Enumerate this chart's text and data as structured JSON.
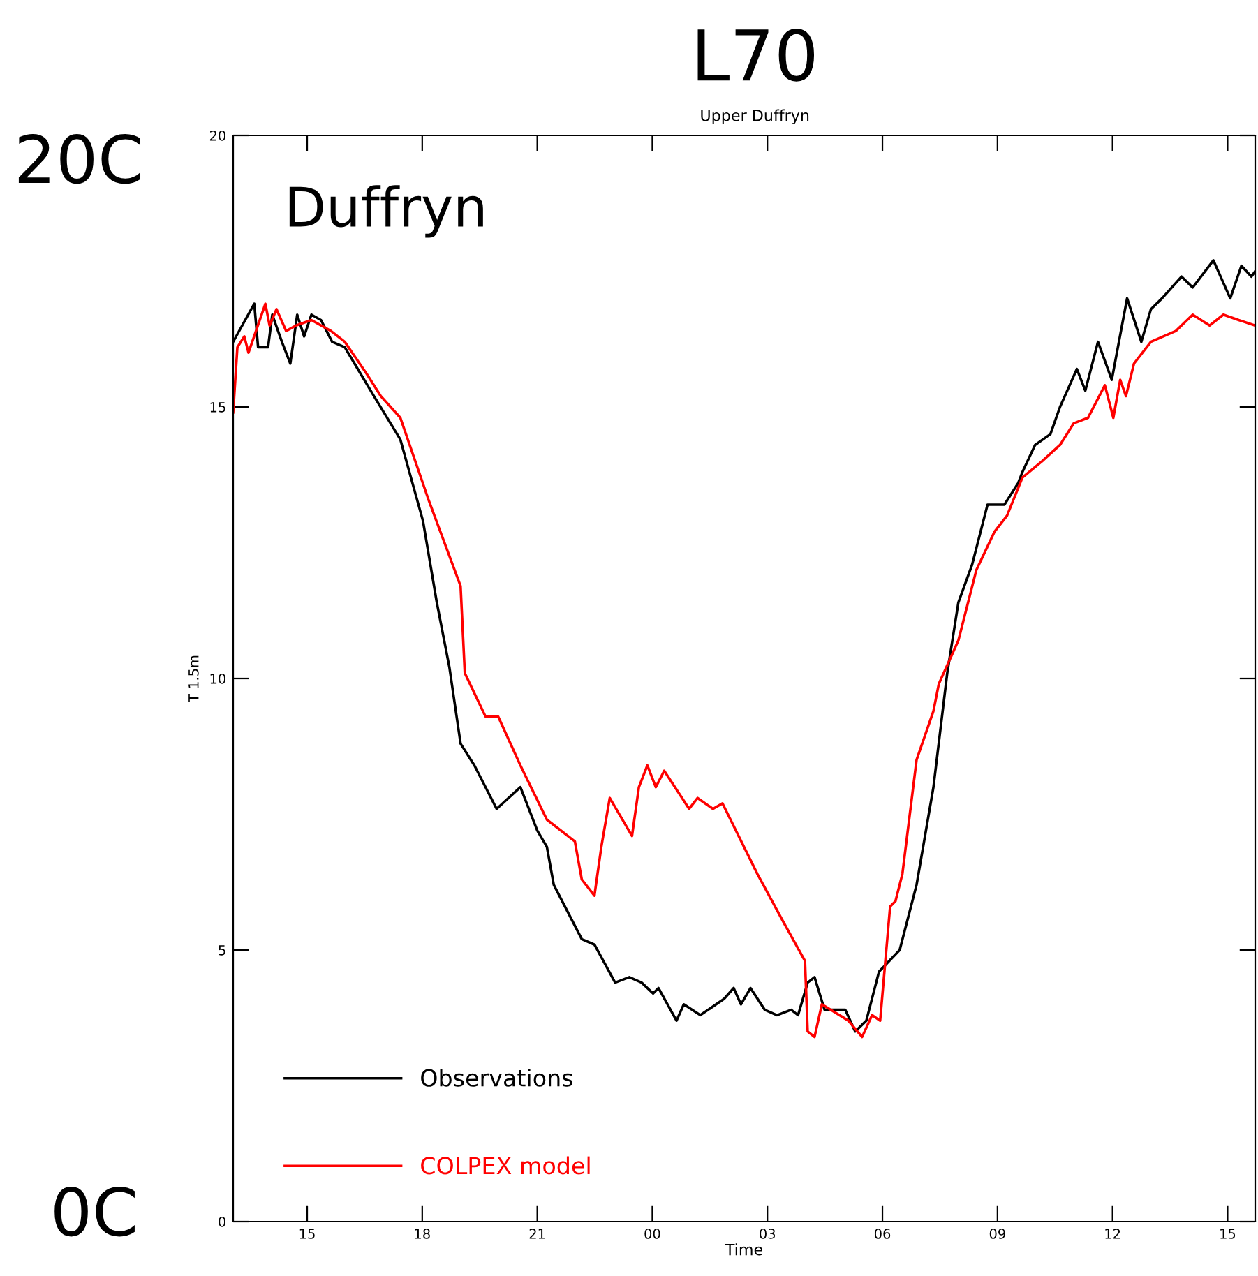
{
  "chart_data": {
    "type": "line",
    "title": "L70",
    "subtitle": "Upper Duffryn",
    "xlabel": "Time",
    "ylabel": "T 1.5m",
    "annotations": [
      "20C",
      "0C",
      "Duffryn"
    ],
    "xlim": [
      13.07,
      39.72
    ],
    "ylim": [
      0,
      20
    ],
    "xticks": [
      {
        "value": 15,
        "label": "15"
      },
      {
        "value": 18,
        "label": "18"
      },
      {
        "value": 21,
        "label": "21"
      },
      {
        "value": 24,
        "label": "00"
      },
      {
        "value": 27,
        "label": "03"
      },
      {
        "value": 30,
        "label": "06"
      },
      {
        "value": 33,
        "label": "09"
      },
      {
        "value": 36,
        "label": "12"
      },
      {
        "value": 39,
        "label": "15"
      }
    ],
    "yticks": [
      0,
      5,
      10,
      15,
      20
    ],
    "grid": false,
    "legend": "bottom left",
    "marker": "none",
    "line_style": "solid",
    "series": [
      {
        "name": "Observations",
        "color": "#000000",
        "x": [
          13.07,
          13.62,
          13.72,
          13.98,
          14.09,
          14.34,
          14.56,
          14.74,
          14.92,
          15.11,
          15.36,
          15.65,
          15.98,
          16.74,
          17.43,
          18.02,
          18.38,
          18.71,
          19.0,
          19.36,
          19.94,
          20.56,
          21.0,
          21.25,
          21.43,
          22.16,
          22.49,
          23.03,
          23.4,
          23.72,
          24.02,
          24.16,
          24.63,
          24.82,
          25.25,
          25.87,
          26.12,
          26.31,
          26.56,
          26.93,
          27.25,
          27.62,
          27.8,
          28.05,
          28.23,
          28.49,
          29.03,
          29.29,
          29.58,
          29.91,
          30.45,
          30.89,
          31.33,
          31.69,
          31.98,
          32.34,
          32.74,
          33.18,
          33.54,
          33.65,
          33.98,
          34.38,
          34.63,
          35.07,
          35.29,
          35.62,
          35.98,
          36.38,
          36.75,
          37.0,
          37.29,
          37.8,
          38.09,
          38.63,
          39.07,
          39.36,
          39.62,
          39.72
        ],
        "values": [
          16.2,
          16.9,
          16.1,
          16.1,
          16.7,
          16.2,
          15.8,
          16.7,
          16.3,
          16.7,
          16.6,
          16.2,
          16.1,
          15.2,
          14.4,
          12.9,
          11.4,
          10.2,
          8.8,
          8.4,
          7.6,
          8.0,
          7.2,
          6.9,
          6.2,
          5.2,
          5.1,
          4.4,
          4.5,
          4.4,
          4.2,
          4.3,
          3.7,
          4.0,
          3.8,
          4.1,
          4.3,
          4.0,
          4.3,
          3.9,
          3.8,
          3.9,
          3.8,
          4.4,
          4.5,
          3.9,
          3.9,
          3.5,
          3.7,
          4.6,
          5.0,
          6.2,
          8.0,
          10.1,
          11.4,
          12.1,
          13.2,
          13.2,
          13.6,
          13.8,
          14.3,
          14.5,
          15.0,
          15.7,
          15.3,
          16.2,
          15.5,
          17.0,
          16.2,
          16.8,
          17.0,
          17.4,
          17.2,
          17.7,
          17.0,
          17.6,
          17.4,
          17.5
        ]
      },
      {
        "name": "COLPEX model",
        "color": "#ff0000",
        "x": [
          13.07,
          13.18,
          13.36,
          13.47,
          13.91,
          14.02,
          14.2,
          14.45,
          14.71,
          15.11,
          15.62,
          15.98,
          16.56,
          16.92,
          17.43,
          18.16,
          19.0,
          19.11,
          19.65,
          19.98,
          20.56,
          21.25,
          21.98,
          22.16,
          22.49,
          22.67,
          22.89,
          23.47,
          23.65,
          23.87,
          24.09,
          24.31,
          24.96,
          25.18,
          25.58,
          25.83,
          26.74,
          27.43,
          27.98,
          28.05,
          28.23,
          28.42,
          29.11,
          29.47,
          29.73,
          29.94,
          30.2,
          30.34,
          30.52,
          30.89,
          31.33,
          31.47,
          31.98,
          32.45,
          32.92,
          33.25,
          33.65,
          34.16,
          34.63,
          34.99,
          35.36,
          35.8,
          36.02,
          36.2,
          36.35,
          36.56,
          37.0,
          37.65,
          38.09,
          38.53,
          38.89,
          39.29,
          39.72
        ],
        "values": [
          14.9,
          16.1,
          16.3,
          16.0,
          16.9,
          16.5,
          16.8,
          16.4,
          16.5,
          16.6,
          16.4,
          16.2,
          15.6,
          15.2,
          14.8,
          13.3,
          11.7,
          10.1,
          9.3,
          9.3,
          8.4,
          7.4,
          7.0,
          6.3,
          6.0,
          6.9,
          7.8,
          7.1,
          8.0,
          8.4,
          8.0,
          8.3,
          7.6,
          7.8,
          7.6,
          7.7,
          6.4,
          5.5,
          4.8,
          3.5,
          3.4,
          4.0,
          3.7,
          3.4,
          3.8,
          3.7,
          5.8,
          5.9,
          6.4,
          8.5,
          9.4,
          9.9,
          10.7,
          12.0,
          12.7,
          13.0,
          13.7,
          14.0,
          14.3,
          14.7,
          14.8,
          15.4,
          14.8,
          15.5,
          15.2,
          15.8,
          16.2,
          16.4,
          16.7,
          16.5,
          16.7,
          16.6,
          16.5
        ]
      }
    ]
  }
}
